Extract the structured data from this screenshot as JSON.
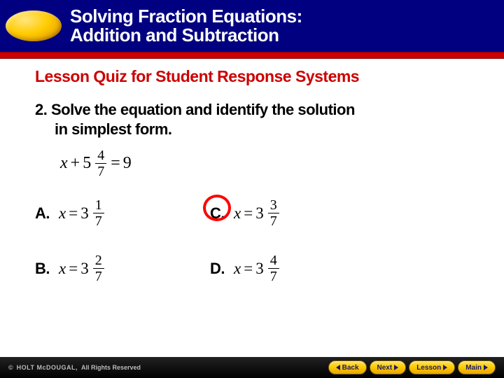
{
  "header": {
    "title_line1": "Solving Fraction Equations:",
    "title_line2": "Addition and Subtraction",
    "bg_color": "#000080",
    "text_color": "#ffffff",
    "title_fontsize": 26,
    "oval_gradient": [
      "#ffe680",
      "#ffcc00",
      "#e69900",
      "#b36b00"
    ]
  },
  "red_bar_color": "#cc0000",
  "quiz": {
    "heading": "Lesson Quiz for Student Response Systems",
    "heading_color": "#cc0000",
    "heading_fontsize": 23,
    "question_number": "2.",
    "question_text_line1": "Solve the equation and identify the solution",
    "question_text_line2": "in simplest form.",
    "question_fontsize": 22,
    "equation": {
      "var": "x",
      "op": "+",
      "whole": "5",
      "frac_num": "4",
      "frac_den": "7",
      "eq": "=",
      "rhs": "9",
      "fontsize": 24
    },
    "answers": [
      {
        "label": "A.",
        "var": "x",
        "eq": "=",
        "whole": "3",
        "num": "1",
        "den": "7",
        "correct": false
      },
      {
        "label": "C.",
        "var": "x",
        "eq": "=",
        "whole": "3",
        "num": "3",
        "den": "7",
        "correct": true
      },
      {
        "label": "B.",
        "var": "x",
        "eq": "=",
        "whole": "3",
        "num": "2",
        "den": "7",
        "correct": false
      },
      {
        "label": "D.",
        "var": "x",
        "eq": "=",
        "whole": "3",
        "num": "4",
        "den": "7",
        "correct": false
      }
    ],
    "answer_label_fontsize": 22,
    "answer_eq_fontsize": 23,
    "correct_circle_color": "#ff0000",
    "correct_circle_border_width": 4
  },
  "footer": {
    "copyright_brand": "HOLT McDOUGAL,",
    "copyright_text": "All Rights Reserved",
    "copyright_color": "#bbbbbb",
    "bg_color": "#000000",
    "buttons": {
      "back": "Back",
      "next": "Next",
      "lesson": "Lesson",
      "main": "Main"
    },
    "button_bg_gradient": [
      "#ffe066",
      "#ffcc00",
      "#e6a500"
    ],
    "button_text_color": "#1a1a6e"
  }
}
